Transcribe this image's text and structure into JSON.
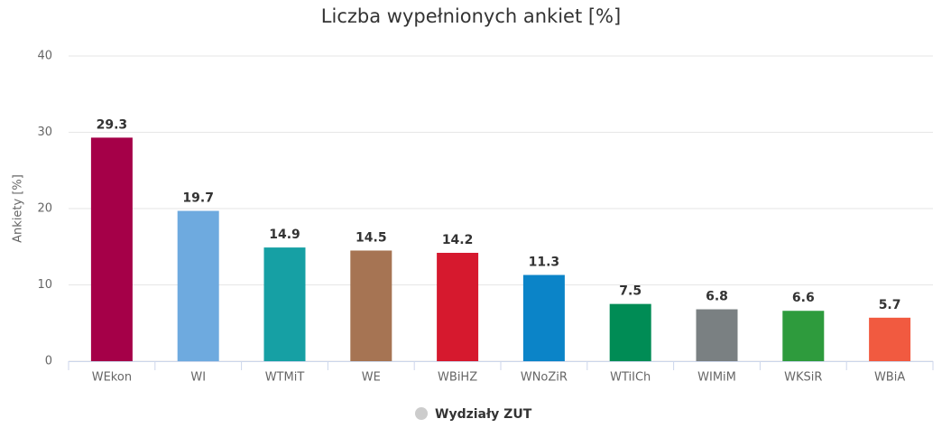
{
  "chart_data": {
    "type": "bar",
    "title": "Liczba wypełnionych ankiet [%]",
    "y_label": "Ankiety [%]",
    "categories": [
      "WEkon",
      "WI",
      "WTMiT",
      "WE",
      "WBiHZ",
      "WNoZiR",
      "WTiICh",
      "WIMiM",
      "WKSiR",
      "WBiA"
    ],
    "series": [
      {
        "name": "Wydziały ZUT",
        "color": "#cccccc",
        "values": [
          29.3,
          19.7,
          14.9,
          14.5,
          14.2,
          11.3,
          7.5,
          6.8,
          6.6,
          5.7
        ],
        "colors": [
          "#a50048",
          "#6eaadf",
          "#16a0a4",
          "#a67453",
          "#d6192e",
          "#0b84c8",
          "#008c55",
          "#7a8082",
          "#2e9b3d",
          "#f15a40"
        ]
      }
    ],
    "ylim": [
      0,
      40
    ],
    "yticks": [
      0,
      10,
      20,
      30,
      40
    ],
    "grid": true
  }
}
